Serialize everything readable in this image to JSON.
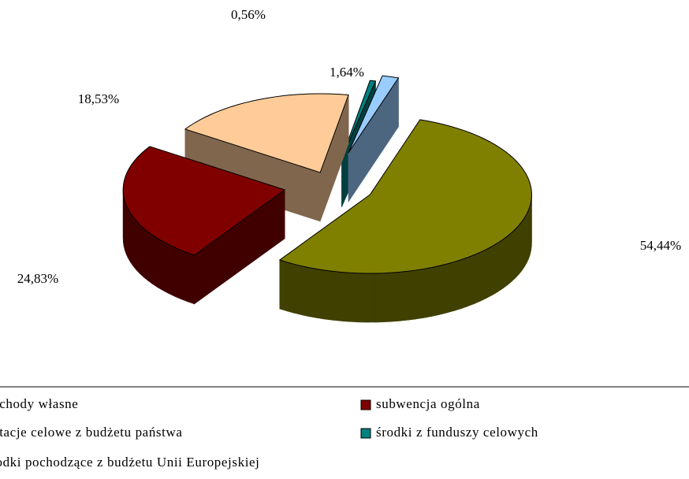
{
  "chart_data": {
    "type": "pie3d",
    "categories": [
      "dochody własne",
      "subwencja ogólna",
      "dotacje celowe z budżetu państwa",
      "środki z funduszy celowych",
      "środki pochodzące z budżetu Unii Europejskiej"
    ],
    "values": [
      54.44,
      24.83,
      18.53,
      0.56,
      1.64
    ],
    "value_labels": [
      "54,44%",
      "24,83%",
      "18,53%",
      "0,56%",
      "1,64%"
    ],
    "colors": [
      "#808000",
      "#800000",
      "#FFCC99",
      "#008080",
      "#99CCFF"
    ],
    "legend": "bottom"
  }
}
